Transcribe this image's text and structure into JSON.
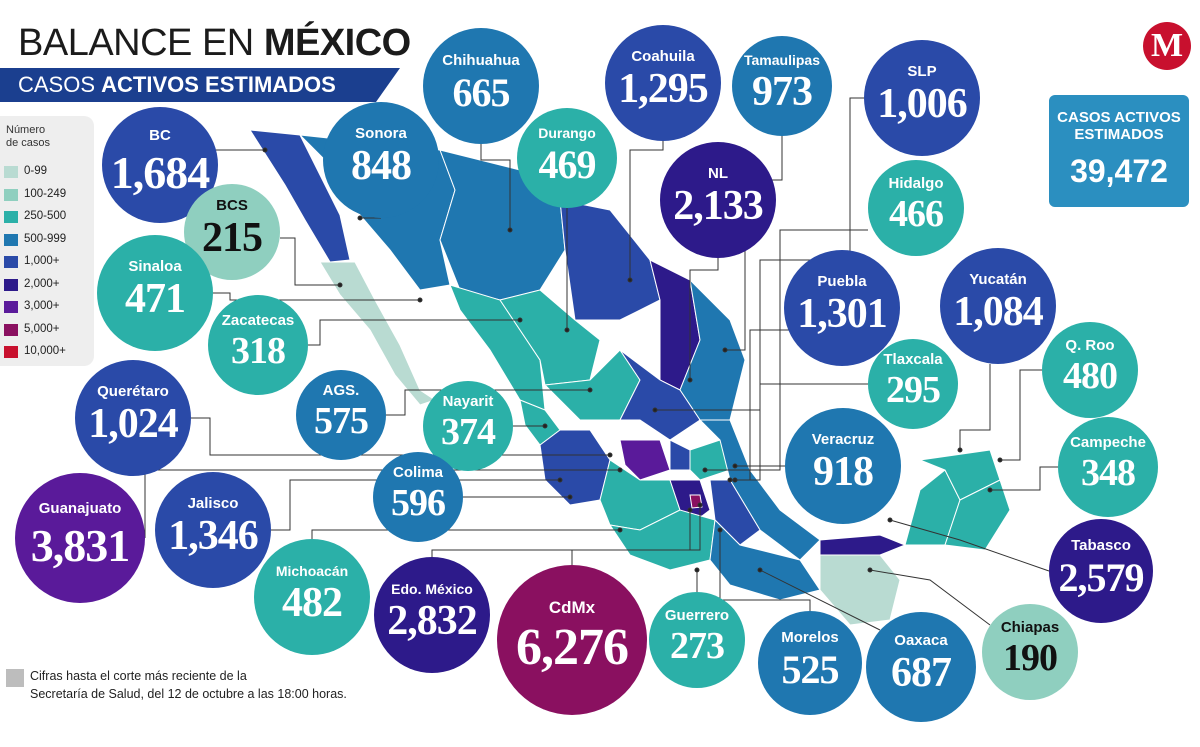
{
  "header": {
    "title_light": "BALANCE EN ",
    "title_bold": "MÉXICO",
    "subtitle_light": "CASOS ",
    "subtitle_bold": "ACTIVOS ESTIMADOS"
  },
  "logo": {
    "letter": "M",
    "color": "#c8102e"
  },
  "legend": {
    "title_line1": "Número",
    "title_line2": "de casos",
    "items": [
      {
        "label": "0-99",
        "color": "#b9dbd2"
      },
      {
        "label": "100-249",
        "color": "#8fcfbf"
      },
      {
        "label": "250-500",
        "color": "#2bb0a8"
      },
      {
        "label": "500-999",
        "color": "#1f77b0"
      },
      {
        "label": "1,000+",
        "color": "#2a4aa8"
      },
      {
        "label": "2,000+",
        "color": "#2d1a8a"
      },
      {
        "label": "3,000+",
        "color": "#5a1a9a"
      },
      {
        "label": "5,000+",
        "color": "#8a1060"
      },
      {
        "label": "10,000+",
        "color": "#c8102e"
      }
    ]
  },
  "total": {
    "label_line1": "CASOS ACTIVOS",
    "label_line2": "ESTIMADOS",
    "value": "39,472"
  },
  "states": [
    {
      "key": "bc",
      "name": "BC",
      "value": "1,684",
      "cat": "1,000+"
    },
    {
      "key": "bcs",
      "name": "BCS",
      "value": "215",
      "cat": "100-249"
    },
    {
      "key": "sinaloa",
      "name": "Sinaloa",
      "value": "471",
      "cat": "250-500"
    },
    {
      "key": "zacatecas",
      "name": "Zacatecas",
      "value": "318",
      "cat": "250-500"
    },
    {
      "key": "queretaro",
      "name": "Querétaro",
      "value": "1,024",
      "cat": "1,000+"
    },
    {
      "key": "ags",
      "name": "AGS.",
      "value": "575",
      "cat": "500-999"
    },
    {
      "key": "nayarit",
      "name": "Nayarit",
      "value": "374",
      "cat": "250-500"
    },
    {
      "key": "guanajuato",
      "name": "Guanajuato",
      "value": "3,831",
      "cat": "3,000+"
    },
    {
      "key": "jalisco",
      "name": "Jalisco",
      "value": "1,346",
      "cat": "1,000+"
    },
    {
      "key": "colima",
      "name": "Colima",
      "value": "596",
      "cat": "500-999"
    },
    {
      "key": "michoacan",
      "name": "Michoacán",
      "value": "482",
      "cat": "250-500"
    },
    {
      "key": "edomex",
      "name": "Edo. México",
      "value": "2,832",
      "cat": "2,000+"
    },
    {
      "key": "cdmx",
      "name": "CdMx",
      "value": "6,276",
      "cat": "5,000+"
    },
    {
      "key": "guerrero",
      "name": "Guerrero",
      "value": "273",
      "cat": "250-500"
    },
    {
      "key": "morelos",
      "name": "Morelos",
      "value": "525",
      "cat": "500-999"
    },
    {
      "key": "oaxaca",
      "name": "Oaxaca",
      "value": "687",
      "cat": "500-999"
    },
    {
      "key": "chiapas",
      "name": "Chiapas",
      "value": "190",
      "cat": "100-249"
    },
    {
      "key": "tabasco",
      "name": "Tabasco",
      "value": "2,579",
      "cat": "2,000+"
    },
    {
      "key": "campeche",
      "name": "Campeche",
      "value": "348",
      "cat": "250-500"
    },
    {
      "key": "qroo",
      "name": "Q. Roo",
      "value": "480",
      "cat": "250-500"
    },
    {
      "key": "yucatan",
      "name": "Yucatán",
      "value": "1,084",
      "cat": "1,000+"
    },
    {
      "key": "tlaxcala",
      "name": "Tlaxcala",
      "value": "295",
      "cat": "250-500"
    },
    {
      "key": "puebla",
      "name": "Puebla",
      "value": "1,301",
      "cat": "1,000+"
    },
    {
      "key": "veracruz",
      "name": "Veracruz",
      "value": "918",
      "cat": "500-999"
    },
    {
      "key": "hidalgo",
      "name": "Hidalgo",
      "value": "466",
      "cat": "250-500"
    },
    {
      "key": "slp",
      "name": "SLP",
      "value": "1,006",
      "cat": "1,000+"
    },
    {
      "key": "nl",
      "name": "NL",
      "value": "2,133",
      "cat": "2,000+"
    },
    {
      "key": "tamaulipas",
      "name": "Tamaulipas",
      "value": "973",
      "cat": "500-999"
    },
    {
      "key": "coahuila",
      "name": "Coahuila",
      "value": "1,295",
      "cat": "1,000+"
    },
    {
      "key": "durango",
      "name": "Durango",
      "value": "469",
      "cat": "250-500"
    },
    {
      "key": "chihuahua",
      "name": "Chihuahua",
      "value": "665",
      "cat": "500-999"
    },
    {
      "key": "sonora",
      "name": "Sonora",
      "value": "848",
      "cat": "500-999"
    }
  ],
  "footnote": {
    "line1": "Cifras hasta el corte más reciente de la",
    "line2": "Secretaría de Salud, del 12 de octubre a las 18:00 horas."
  }
}
